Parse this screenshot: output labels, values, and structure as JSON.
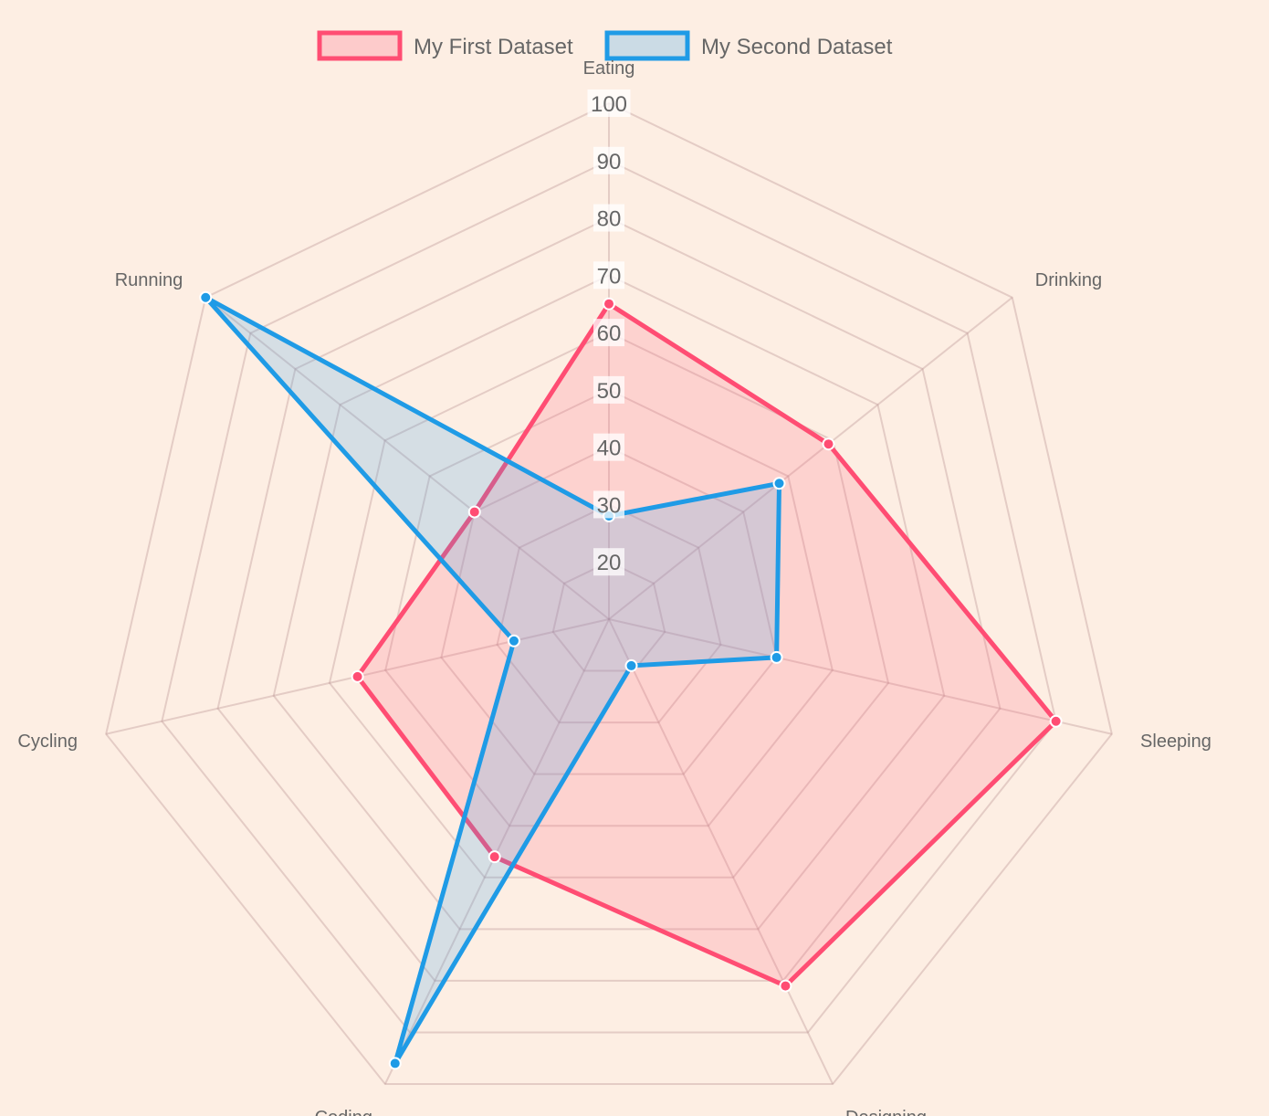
{
  "chart_data": {
    "type": "radar",
    "labels": [
      "Eating",
      "Drinking",
      "Sleeping",
      "Designing",
      "Coding",
      "Cycling",
      "Running"
    ],
    "r_min": 10,
    "r_max": 100,
    "ticks": [
      "20",
      "30",
      "40",
      "50",
      "60",
      "70",
      "80",
      "90",
      "100"
    ],
    "grid": true,
    "legend_position": "top",
    "series": [
      {
        "name": "My First Dataset",
        "values": [
          65,
          59,
          90,
          81,
          56,
          55,
          40
        ],
        "color": "#ff4d73",
        "fill": "rgba(255,99,132,0.2)"
      },
      {
        "name": "My Second Dataset",
        "values": [
          28,
          48,
          40,
          19,
          96,
          27,
          100
        ],
        "color": "#1f9be6",
        "fill": "rgba(54,162,235,0.2)"
      }
    ]
  }
}
